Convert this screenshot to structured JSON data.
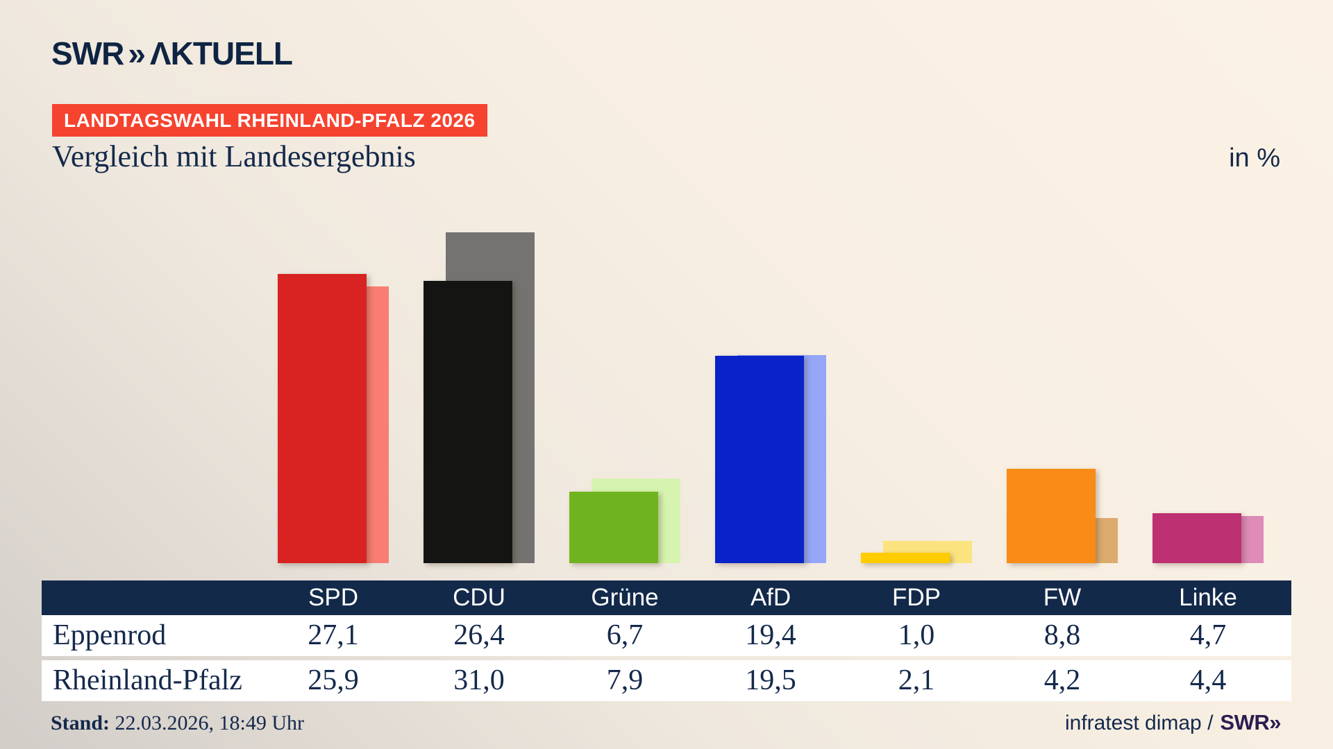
{
  "header": {
    "logo": {
      "swr": "SWR",
      "chevron": "»",
      "aktuell": "ΛKTUELL"
    },
    "badge": "LANDTAGSWAHL RHEINLAND-PFALZ 2026",
    "title": "Vergleich mit Landesergebnis",
    "unit": "in %"
  },
  "chart_data": {
    "type": "bar",
    "title": "Vergleich mit Landesergebnis",
    "unit": "in %",
    "grid": false,
    "legend_position": "table-below",
    "ylim": [
      0,
      31
    ],
    "categories": [
      "SPD",
      "CDU",
      "Grüne",
      "AfD",
      "FDP",
      "FW",
      "Linke"
    ],
    "series": [
      {
        "name": "Eppenrod",
        "values": [
          27.1,
          26.4,
          6.7,
          19.4,
          1.0,
          8.8,
          4.7
        ]
      },
      {
        "name": "Rheinland-Pfalz",
        "values": [
          25.9,
          31.0,
          7.9,
          19.5,
          2.1,
          4.2,
          4.4
        ]
      }
    ],
    "party_colors": [
      {
        "party": "SPD",
        "main": "#d82322",
        "light": "#f97d72"
      },
      {
        "party": "CDU",
        "main": "#141413",
        "light": "#757371"
      },
      {
        "party": "Grüne",
        "main": "#6fb41e",
        "light": "#d6f3b0"
      },
      {
        "party": "AfD",
        "main": "#0a23c8",
        "light": "#95a6f8"
      },
      {
        "party": "FDP",
        "main": "#ffcc00",
        "light": "#fbe37f"
      },
      {
        "party": "FW",
        "main": "#f98b16",
        "light": "#dcab6e"
      },
      {
        "party": "Linke",
        "main": "#bd3071",
        "light": "#de8bb8"
      }
    ]
  },
  "footer": {
    "stand_label": "Stand:",
    "stand_value": " 22.03.2026, 18:49 Uhr",
    "source": "infratest dimap /",
    "source_logo": {
      "swr": "SWR",
      "chevron": "»"
    }
  },
  "colors": {
    "navy": "#14294b",
    "badge_red": "#f6432f",
    "table_header_bg": "#13294a",
    "swr_footer_purple": "#2b1d51"
  }
}
